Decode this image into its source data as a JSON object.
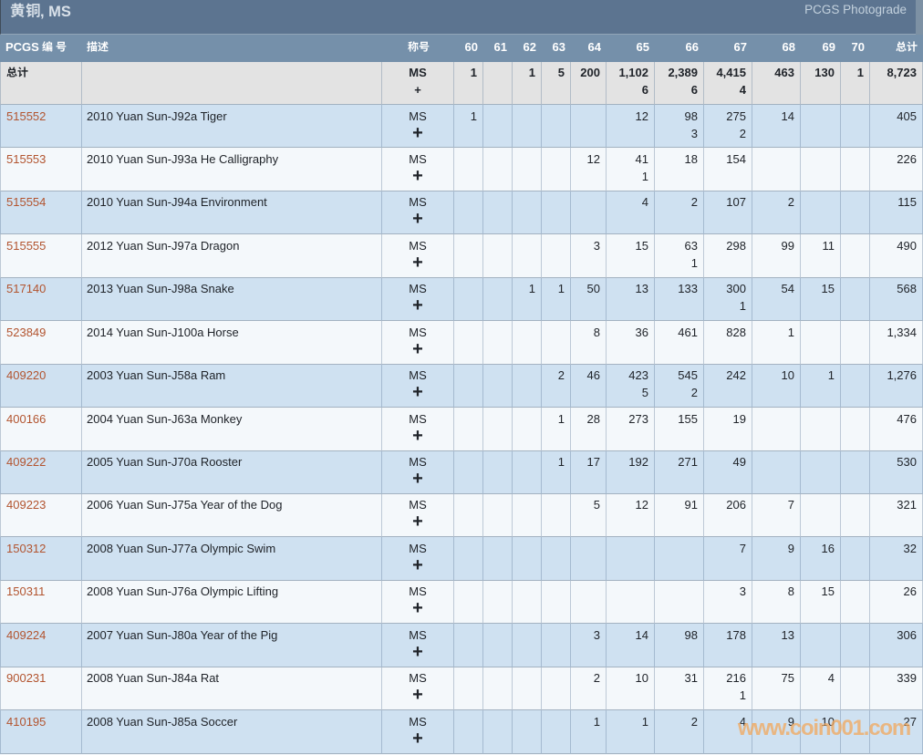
{
  "title_bar": {
    "title": "黄铜, MS",
    "photograde_label": "PCGS Photograde"
  },
  "table": {
    "columns": {
      "pcgs_no": "PCGS 编号",
      "description": "描述",
      "designation": "称号",
      "grades": [
        "60",
        "61",
        "62",
        "63",
        "64",
        "65",
        "66",
        "67",
        "68",
        "69",
        "70"
      ],
      "total": "总计"
    },
    "total_row": {
      "label": "总计",
      "designation": [
        "MS",
        "+"
      ],
      "counts": [
        [
          "1"
        ],
        [],
        [
          "1"
        ],
        [
          "5"
        ],
        [
          "200"
        ],
        [
          "1,102",
          "6"
        ],
        [
          "2,389",
          "6"
        ],
        [
          "4,415",
          "4"
        ],
        [
          "463"
        ],
        [
          "130"
        ],
        [
          "1"
        ]
      ],
      "total": "8,723"
    },
    "rows": [
      {
        "pcgs_no": "515552",
        "description": "2010 Yuan Sun-J92a Tiger",
        "designation": [
          "MS",
          "+"
        ],
        "counts": [
          [
            "1"
          ],
          [],
          [],
          [],
          [],
          [
            "12"
          ],
          [
            "98",
            "3"
          ],
          [
            "275",
            "2"
          ],
          [
            "14"
          ],
          [],
          []
        ],
        "total": "405"
      },
      {
        "pcgs_no": "515553",
        "description": "2010 Yuan Sun-J93a He Calligraphy",
        "designation": [
          "MS",
          "+"
        ],
        "counts": [
          [],
          [],
          [],
          [],
          [
            "12"
          ],
          [
            "41",
            "1"
          ],
          [
            "18"
          ],
          [
            "154"
          ],
          [],
          [],
          []
        ],
        "total": "226"
      },
      {
        "pcgs_no": "515554",
        "description": "2010 Yuan Sun-J94a Environment",
        "designation": [
          "MS",
          "+"
        ],
        "counts": [
          [],
          [],
          [],
          [],
          [],
          [
            "4"
          ],
          [
            "2"
          ],
          [
            "107"
          ],
          [
            "2"
          ],
          [],
          []
        ],
        "total": "115"
      },
      {
        "pcgs_no": "515555",
        "description": "2012 Yuan Sun-J97a Dragon",
        "designation": [
          "MS",
          "+"
        ],
        "counts": [
          [],
          [],
          [],
          [],
          [
            "3"
          ],
          [
            "15"
          ],
          [
            "63",
            "1"
          ],
          [
            "298"
          ],
          [
            "99"
          ],
          [
            "11"
          ],
          []
        ],
        "total": "490"
      },
      {
        "pcgs_no": "517140",
        "description": "2013 Yuan Sun-J98a Snake",
        "designation": [
          "MS",
          "+"
        ],
        "counts": [
          [],
          [],
          [
            "1"
          ],
          [
            "1"
          ],
          [
            "50"
          ],
          [
            "13"
          ],
          [
            "133"
          ],
          [
            "300",
            "1"
          ],
          [
            "54"
          ],
          [
            "15"
          ],
          []
        ],
        "total": "568"
      },
      {
        "pcgs_no": "523849",
        "description": "2014 Yuan Sun-J100a Horse",
        "designation": [
          "MS",
          "+"
        ],
        "counts": [
          [],
          [],
          [],
          [],
          [
            "8"
          ],
          [
            "36"
          ],
          [
            "461"
          ],
          [
            "828"
          ],
          [
            "1"
          ],
          [],
          []
        ],
        "total": "1,334"
      },
      {
        "pcgs_no": "409220",
        "description": "2003 Yuan Sun-J58a Ram",
        "designation": [
          "MS",
          "+"
        ],
        "counts": [
          [],
          [],
          [],
          [
            "2"
          ],
          [
            "46"
          ],
          [
            "423",
            "5"
          ],
          [
            "545",
            "2"
          ],
          [
            "242"
          ],
          [
            "10"
          ],
          [
            "1"
          ],
          []
        ],
        "total": "1,276"
      },
      {
        "pcgs_no": "400166",
        "description": "2004 Yuan Sun-J63a Monkey",
        "designation": [
          "MS",
          "+"
        ],
        "counts": [
          [],
          [],
          [],
          [
            "1"
          ],
          [
            "28"
          ],
          [
            "273"
          ],
          [
            "155"
          ],
          [
            "19"
          ],
          [],
          [],
          []
        ],
        "total": "476"
      },
      {
        "pcgs_no": "409222",
        "description": "2005 Yuan Sun-J70a Rooster",
        "designation": [
          "MS",
          "+"
        ],
        "counts": [
          [],
          [],
          [],
          [
            "1"
          ],
          [
            "17"
          ],
          [
            "192"
          ],
          [
            "271"
          ],
          [
            "49"
          ],
          [],
          [],
          []
        ],
        "total": "530"
      },
      {
        "pcgs_no": "409223",
        "description": "2006 Yuan Sun-J75a Year of the Dog",
        "designation": [
          "MS",
          "+"
        ],
        "counts": [
          [],
          [],
          [],
          [],
          [
            "5"
          ],
          [
            "12"
          ],
          [
            "91"
          ],
          [
            "206"
          ],
          [
            "7"
          ],
          [],
          []
        ],
        "total": "321"
      },
      {
        "pcgs_no": "150312",
        "description": "2008 Yuan Sun-J77a Olympic Swim",
        "designation": [
          "MS",
          "+"
        ],
        "counts": [
          [],
          [],
          [],
          [],
          [],
          [],
          [],
          [
            "7"
          ],
          [
            "9"
          ],
          [
            "16"
          ],
          []
        ],
        "total": "32"
      },
      {
        "pcgs_no": "150311",
        "description": "2008 Yuan Sun-J76a Olympic Lifting",
        "designation": [
          "MS",
          "+"
        ],
        "counts": [
          [],
          [],
          [],
          [],
          [],
          [],
          [],
          [
            "3"
          ],
          [
            "8"
          ],
          [
            "15"
          ],
          []
        ],
        "total": "26"
      },
      {
        "pcgs_no": "409224",
        "description": "2007 Yuan Sun-J80a Year of the Pig",
        "designation": [
          "MS",
          "+"
        ],
        "counts": [
          [],
          [],
          [],
          [],
          [
            "3"
          ],
          [
            "14"
          ],
          [
            "98"
          ],
          [
            "178"
          ],
          [
            "13"
          ],
          [],
          []
        ],
        "total": "306"
      },
      {
        "pcgs_no": "900231",
        "description": "2008 Yuan Sun-J84a Rat",
        "designation": [
          "MS",
          "+"
        ],
        "counts": [
          [],
          [],
          [],
          [],
          [
            "2"
          ],
          [
            "10"
          ],
          [
            "31"
          ],
          [
            "216",
            "1"
          ],
          [
            "75"
          ],
          [
            "4"
          ],
          []
        ],
        "total": "339"
      },
      {
        "pcgs_no": "410195",
        "description": "2008 Yuan Sun-J85a Soccer",
        "designation": [
          "MS",
          "+"
        ],
        "counts": [
          [],
          [],
          [],
          [],
          [
            "1"
          ],
          [
            "1"
          ],
          [
            "2"
          ],
          [
            "4"
          ],
          [
            "9"
          ],
          [
            "10"
          ],
          []
        ],
        "total": "27"
      }
    ]
  },
  "watermark": "www.coin001.com",
  "colors": {
    "title_bar_bg": "#5c7490",
    "header_bg": "#7590aa",
    "total_row_bg": "#e3e3e3",
    "row_blue_bg": "#cfe1f1",
    "row_light_bg": "#f4f8fb",
    "link": "#b2542f",
    "watermark": "#e9a964"
  }
}
